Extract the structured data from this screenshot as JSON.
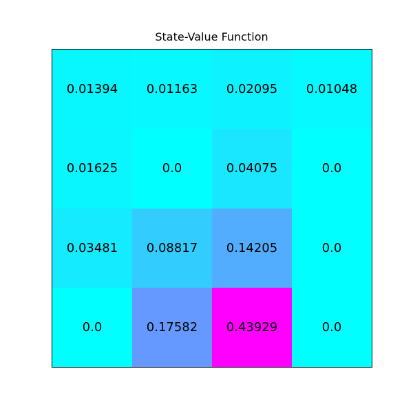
{
  "chart_data": {
    "type": "heatmap",
    "title": "State-Value Function",
    "rows": 4,
    "cols": 4,
    "values": [
      [
        0.01394,
        0.01163,
        0.02095,
        0.01048
      ],
      [
        0.01625,
        0.0,
        0.04075,
        0.0
      ],
      [
        0.03481,
        0.08817,
        0.14205,
        0.0
      ],
      [
        0.0,
        0.17582,
        0.43929,
        0.0
      ]
    ],
    "labels": [
      [
        "0.01394",
        "0.01163",
        "0.02095",
        "0.01048"
      ],
      [
        "0.01625",
        "0.0",
        "0.04075",
        "0.0"
      ],
      [
        "0.03481",
        "0.08817",
        "0.14205",
        "0.0"
      ],
      [
        "0.0",
        "0.17582",
        "0.43929",
        "0.0"
      ]
    ],
    "colormap": "cool",
    "vmin": 0.0,
    "vmax": 0.43929,
    "colormap_min_color": "#00ffff",
    "colormap_max_color": "#ff00ff",
    "text_color": "#000000",
    "border_color": "#000000",
    "legend": "none",
    "axis_ticks": "none",
    "background_color": "#ffffff"
  }
}
